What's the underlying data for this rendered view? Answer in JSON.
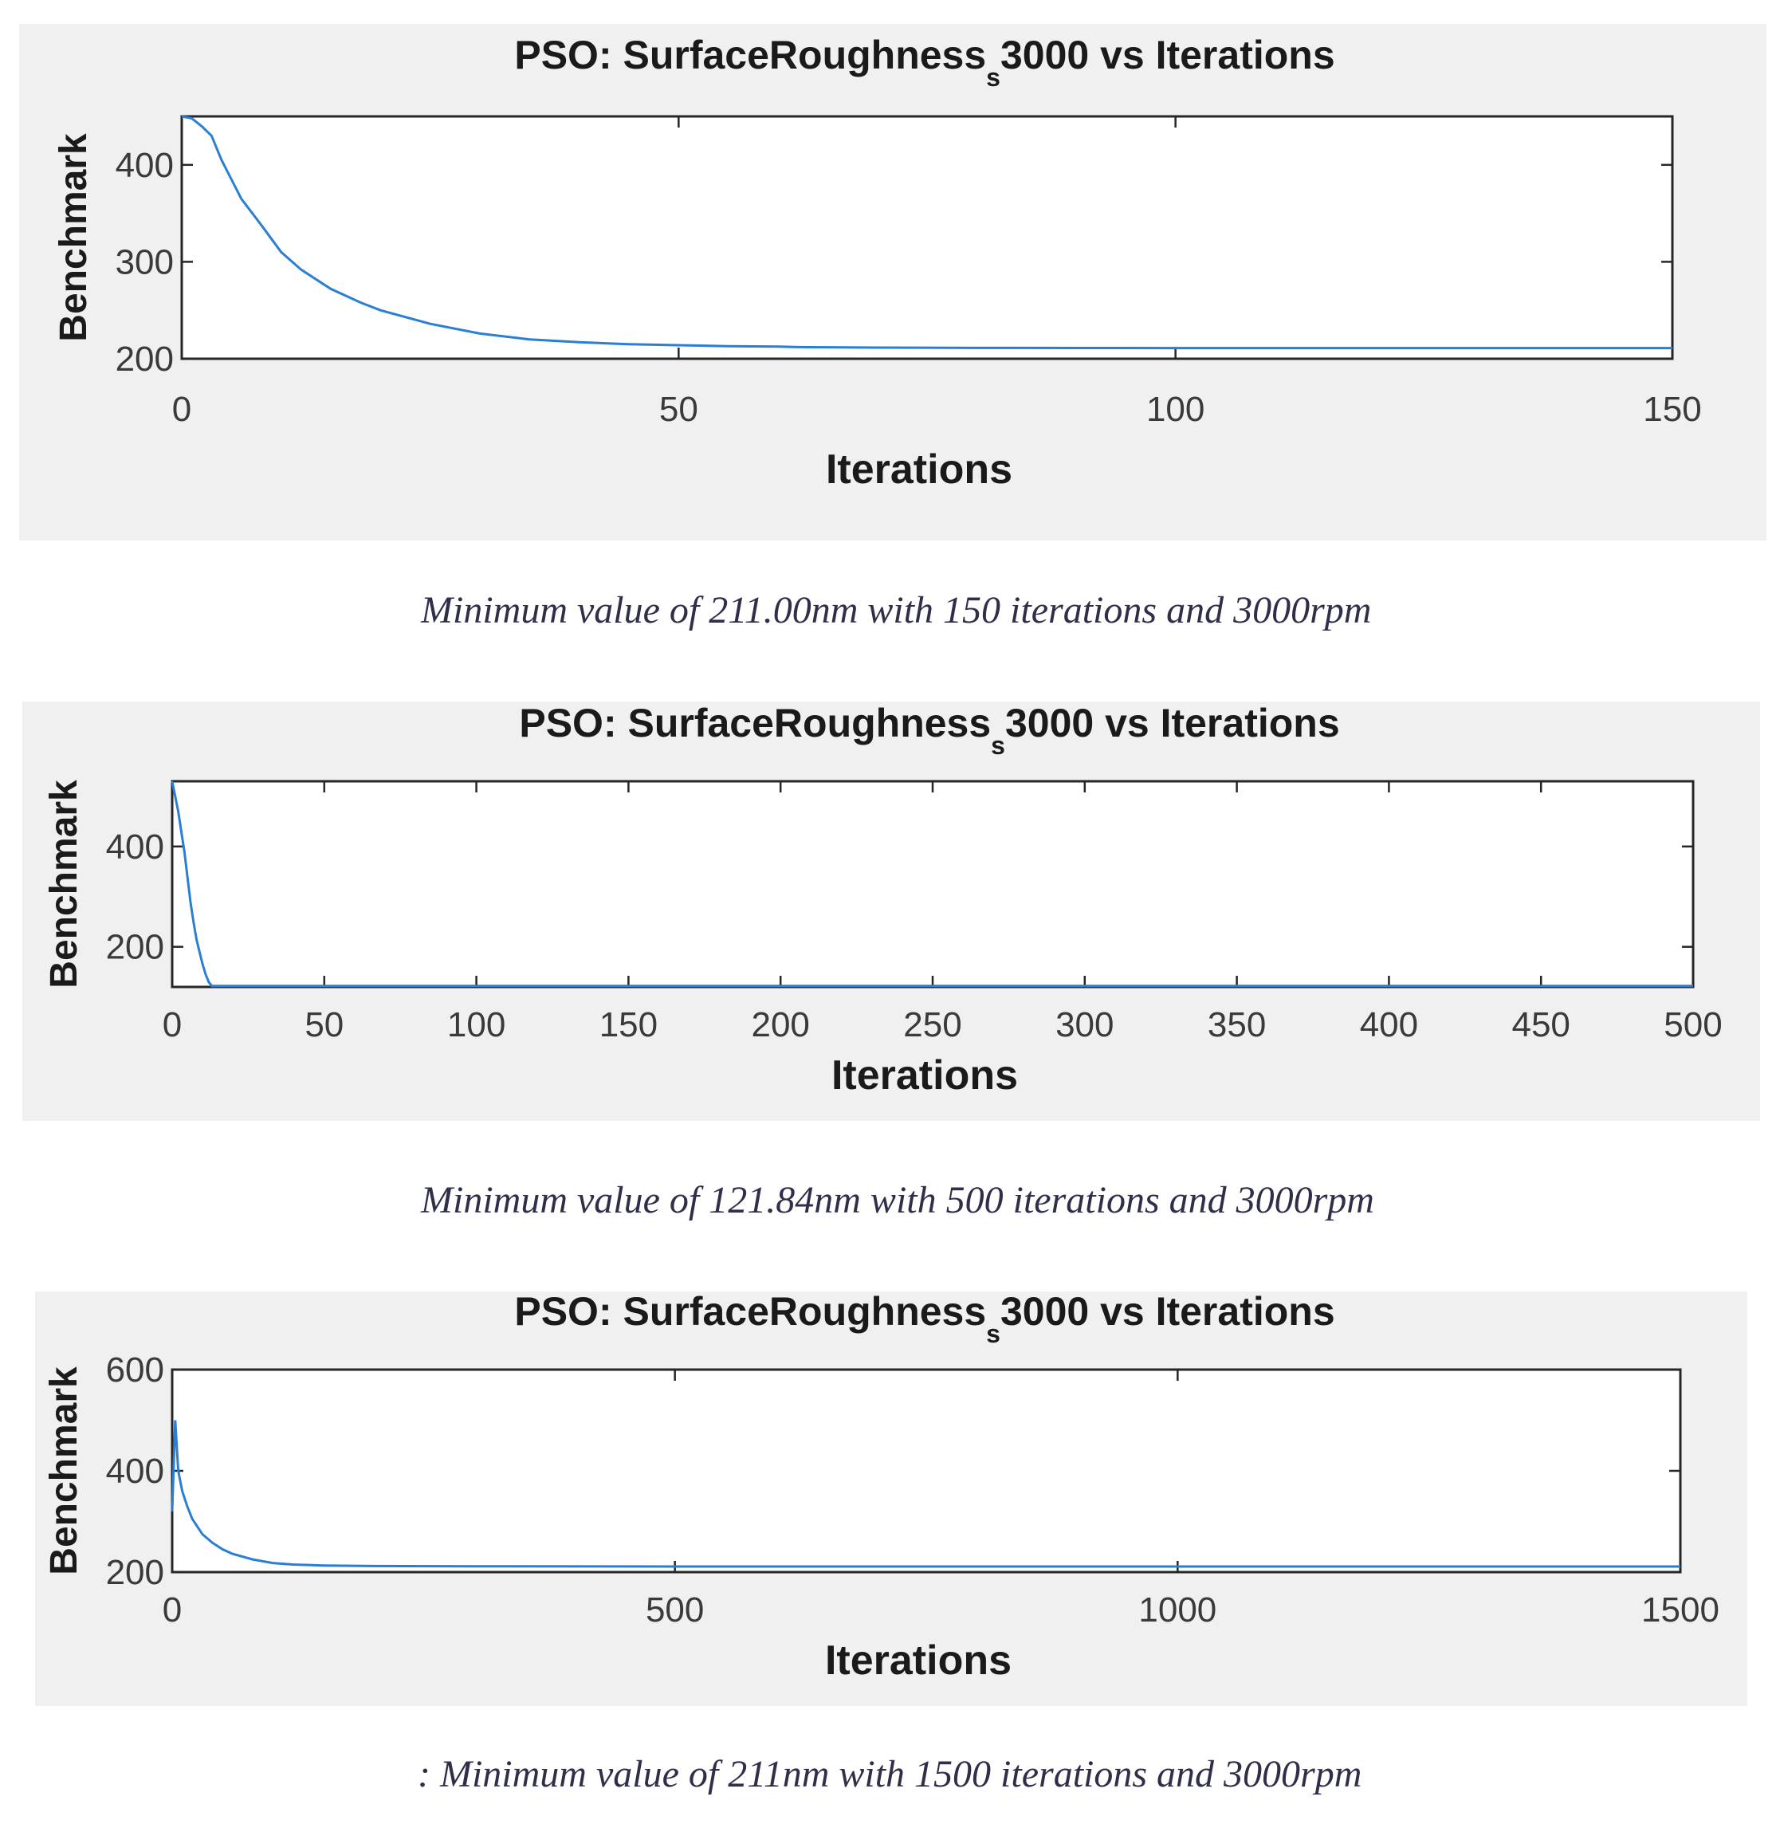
{
  "chart_data": [
    {
      "type": "line",
      "title": "PSO: SurfaceRoughness",
      "title_subscript": "s",
      "title_suffix": "3000 vs Iterations",
      "xlabel": "Iterations",
      "ylabel": "Benchmark",
      "xlim": [
        0,
        150
      ],
      "ylim": [
        200,
        450
      ],
      "xticks": [
        0,
        50,
        100,
        150
      ],
      "yticks": [
        200,
        300,
        400
      ],
      "grid": false,
      "line_color": "#2a7fd4",
      "series": [
        {
          "x": [
            0,
            1,
            2,
            3,
            4,
            5,
            6,
            8,
            10,
            12,
            15,
            18,
            20,
            25,
            30,
            35,
            40,
            45,
            50,
            55,
            60,
            62,
            70,
            80,
            90,
            100,
            110,
            120,
            130,
            140,
            150
          ],
          "y": [
            450,
            448,
            440,
            430,
            405,
            385,
            365,
            338,
            310,
            292,
            272,
            258,
            250,
            236,
            226,
            220,
            217,
            215,
            214,
            213,
            212.5,
            212,
            211.5,
            211.2,
            211.1,
            211,
            211,
            211,
            211,
            211,
            211
          ]
        }
      ]
    },
    {
      "type": "line",
      "title": "PSO: SurfaceRoughness",
      "title_subscript": "s",
      "title_suffix": "3000 vs Iterations",
      "xlabel": "Iterations",
      "ylabel": "Benchmark",
      "xlim": [
        0,
        500
      ],
      "ylim": [
        120,
        530
      ],
      "xticks": [
        0,
        50,
        100,
        150,
        200,
        250,
        300,
        350,
        400,
        450,
        500
      ],
      "yticks": [
        200,
        400
      ],
      "grid": false,
      "line_color": "#2a7fd4",
      "series": [
        {
          "x": [
            0,
            1,
            2,
            3,
            4,
            5,
            6,
            7,
            8,
            9,
            10,
            11,
            12,
            13,
            20,
            50,
            100,
            200,
            300,
            400,
            500
          ],
          "y": [
            530,
            500,
            470,
            430,
            390,
            340,
            290,
            250,
            215,
            190,
            165,
            145,
            130,
            122,
            121.84,
            121.84,
            121.84,
            121.84,
            121.84,
            121.84,
            121.84
          ]
        }
      ]
    },
    {
      "type": "line",
      "title": "PSO: SurfaceRoughness",
      "title_subscript": "s",
      "title_suffix": "3000 vs Iterations",
      "xlabel": "Iterations",
      "ylabel": "Benchmark",
      "xlim": [
        0,
        1500
      ],
      "ylim": [
        200,
        600
      ],
      "xticks": [
        0,
        500,
        1000,
        1500
      ],
      "yticks": [
        200,
        400,
        600
      ],
      "grid": false,
      "line_color": "#2a7fd4",
      "series": [
        {
          "x": [
            0,
            3,
            6,
            10,
            15,
            20,
            25,
            30,
            40,
            50,
            60,
            80,
            100,
            120,
            150,
            200,
            300,
            500,
            800,
            1000,
            1200,
            1500
          ],
          "y": [
            320,
            500,
            400,
            360,
            330,
            305,
            290,
            275,
            258,
            245,
            236,
            225,
            218,
            215,
            213,
            212,
            211.5,
            211,
            211,
            211,
            211,
            211
          ]
        }
      ]
    }
  ],
  "captions": [
    "Minimum value of 211.00nm with 150 iterations and 3000rpm",
    "Minimum value of 121.84nm with 500 iterations and 3000rpm",
    ": Minimum value of 211nm with 1500 iterations and 3000rpm"
  ]
}
